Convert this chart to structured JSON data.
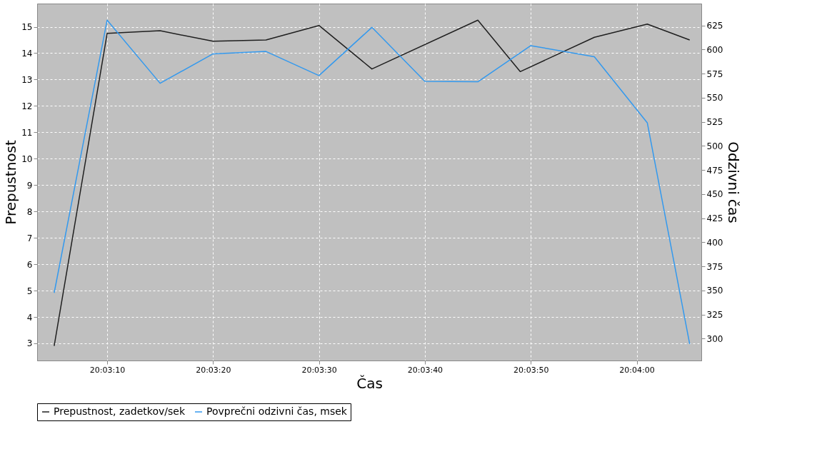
{
  "chart_data": {
    "type": "line",
    "xlabel": "Čas",
    "ylabel": "Prepustnost",
    "y2label": "Odzivni čas",
    "xlim": [
      20.050942,
      20.068361
    ],
    "xticks": [
      {
        "value": 20.052778,
        "label": "20:03:10"
      },
      {
        "value": 20.055556,
        "label": "20:03:20"
      },
      {
        "value": 20.058333,
        "label": "20:03:30"
      },
      {
        "value": 20.061111,
        "label": "20:03:40"
      },
      {
        "value": 20.063889,
        "label": "20:03:50"
      },
      {
        "value": 20.066667,
        "label": "20:04:00"
      }
    ],
    "ylim": [
      2.35,
      15.88
    ],
    "yticks": [
      3,
      4,
      5,
      6,
      7,
      8,
      9,
      10,
      11,
      12,
      13,
      14,
      15
    ],
    "y2lim": [
      277.3,
      647.7
    ],
    "y2ticks": [
      300,
      325,
      350,
      375,
      400,
      425,
      450,
      475,
      500,
      525,
      550,
      575,
      600,
      625
    ],
    "grid": true,
    "legend": "bottom",
    "line_style": "solid",
    "series": [
      {
        "name": "Prepustnost, zadetkov/sek",
        "color": "#1f1f1f",
        "x": [
          20.051389,
          20.052778,
          20.054167,
          20.055556,
          20.056944,
          20.058333,
          20.059722,
          20.0625,
          20.063611,
          20.065556,
          20.066944,
          20.068056
        ],
        "values": [
          2.9,
          14.75,
          14.85,
          14.45,
          14.5,
          15.05,
          13.4,
          15.25,
          13.3,
          14.6,
          15.1,
          14.5
        ]
      },
      {
        "name": "Povprečni odzivni čas, msek",
        "color": "#3399ee",
        "axis": "y2",
        "x": [
          20.051389,
          20.052778,
          20.054167,
          20.055556,
          20.056944,
          20.058333,
          20.059722,
          20.061111,
          20.0625,
          20.063889,
          20.065556,
          20.066944,
          20.068056
        ],
        "values": [
          347.5,
          630.5,
          565,
          595.5,
          598,
          573,
          623,
          567,
          566.5,
          604,
          592.5,
          524,
          294.5
        ]
      }
    ]
  }
}
